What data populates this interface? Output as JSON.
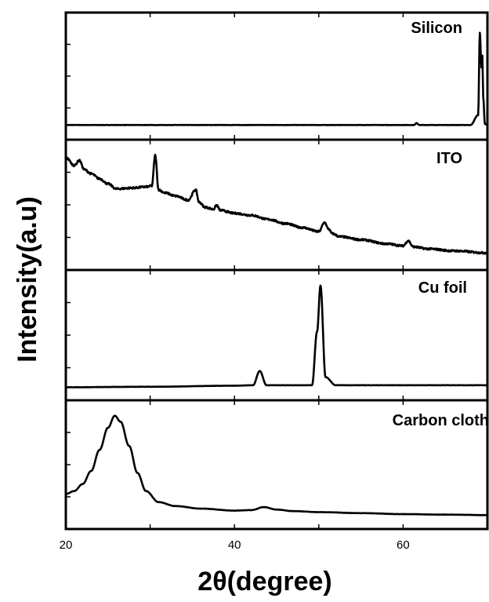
{
  "chart_data": {
    "type": "line",
    "xlabel": "2θ(degree)",
    "ylabel": "Intensity(a.u)",
    "xlim": [
      20,
      70
    ],
    "xticks": [
      20,
      40,
      60
    ],
    "grid": false,
    "legend": "none",
    "colors": {
      "line": "#000000",
      "background": "#ffffff"
    },
    "panels": [
      {
        "name": "Silicon",
        "ylim": [
          0,
          100
        ],
        "x": [
          20,
          40,
          60,
          61.3,
          61.6,
          61.9,
          62.5,
          68.0,
          68.9,
          69.1,
          69.3,
          69.4,
          69.5,
          69.7,
          70
        ],
        "values": [
          2,
          2,
          2,
          2,
          4,
          2,
          2,
          2,
          12,
          95,
          60,
          72,
          30,
          3,
          2
        ]
      },
      {
        "name": "ITO",
        "ylim": [
          0,
          100
        ],
        "x": [
          20,
          21,
          21.6,
          22.2,
          23,
          24,
          25,
          26,
          28,
          29.5,
          30.2,
          30.6,
          31.0,
          31.8,
          33,
          34.5,
          35.4,
          35.8,
          36.5,
          37.5,
          37.9,
          38.3,
          40,
          42,
          44,
          46,
          48,
          50,
          50.7,
          51.1,
          51.6,
          52.5,
          55,
          58,
          60,
          60.6,
          61.2,
          63,
          66,
          70
        ],
        "values": [
          98,
          90,
          95,
          86,
          82,
          77,
          72,
          67,
          68,
          69,
          70,
          100,
          66,
          63,
          60,
          56,
          66,
          54,
          49,
          47,
          51,
          46,
          43,
          41,
          37,
          33,
          29,
          25,
          34,
          28,
          23,
          20,
          17,
          13,
          11,
          16,
          10,
          8,
          6,
          4
        ]
      },
      {
        "name": "Cu foil",
        "ylim": [
          0,
          100
        ],
        "x": [
          20,
          30,
          40,
          42.2,
          43.0,
          43.8,
          45,
          49.2,
          49.8,
          50.2,
          50.8,
          52,
          60,
          70
        ],
        "values": [
          0,
          0.5,
          1.5,
          2,
          16,
          2,
          2,
          2,
          55,
          100,
          10,
          2,
          2,
          2
        ]
      },
      {
        "name": "Carbon cloth",
        "ylim": [
          0,
          100
        ],
        "x": [
          20,
          21,
          22,
          23,
          24,
          25,
          25.8,
          26.5,
          27.5,
          28.5,
          29.5,
          31,
          33,
          36,
          40,
          42,
          43.5,
          45,
          47,
          50,
          55,
          60,
          65,
          70
        ],
        "values": [
          22,
          25,
          32,
          45,
          66,
          88,
          100,
          94,
          70,
          43,
          25,
          14,
          10,
          7.5,
          5.5,
          6,
          9,
          6.5,
          5,
          4,
          3,
          2,
          1.5,
          1
        ]
      }
    ]
  }
}
